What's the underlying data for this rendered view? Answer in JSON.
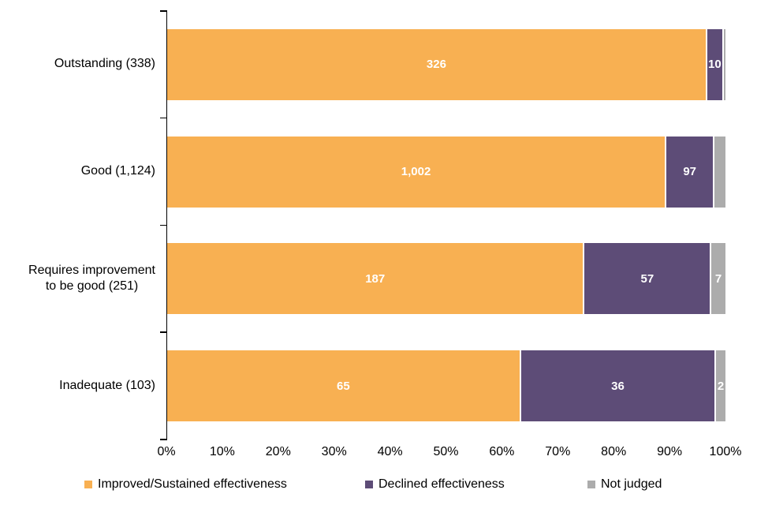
{
  "chart_data": {
    "type": "bar",
    "orientation": "horizontal",
    "stacked": true,
    "title": "",
    "grid": false,
    "legend_position": "bottom",
    "categories": [
      "Outstanding (338)",
      "Good (1,124)",
      "Requires improvement\nto be good (251)",
      "Inadequate (103)"
    ],
    "category_totals": [
      338,
      1124,
      251,
      103
    ],
    "series": [
      {
        "name": "Improved/Sustained effectiveness",
        "slug": "improved-sustained-effectiveness",
        "color": "#F8B052",
        "values": [
          326,
          1002,
          187,
          65
        ],
        "labels": [
          "326",
          "1,002",
          "187",
          "65"
        ]
      },
      {
        "name": "Declined effectiveness",
        "slug": "declined-effectiveness",
        "color": "#5D4C77",
        "values": [
          10,
          97,
          57,
          36
        ],
        "labels": [
          "10",
          "97",
          "57",
          "36"
        ]
      },
      {
        "name": "Not judged",
        "slug": "not-judged",
        "color": "#ACACAC",
        "values": [
          2,
          25,
          7,
          2
        ],
        "labels": [
          "",
          "",
          "7",
          "2"
        ]
      }
    ],
    "x_axis": {
      "tick_labels": [
        "0%",
        "10%",
        "20%",
        "30%",
        "40%",
        "50%",
        "60%",
        "70%",
        "80%",
        "90%",
        "100%"
      ],
      "min_pct": 0,
      "max_pct": 100
    },
    "value_label_color": "#FFFFFF"
  }
}
